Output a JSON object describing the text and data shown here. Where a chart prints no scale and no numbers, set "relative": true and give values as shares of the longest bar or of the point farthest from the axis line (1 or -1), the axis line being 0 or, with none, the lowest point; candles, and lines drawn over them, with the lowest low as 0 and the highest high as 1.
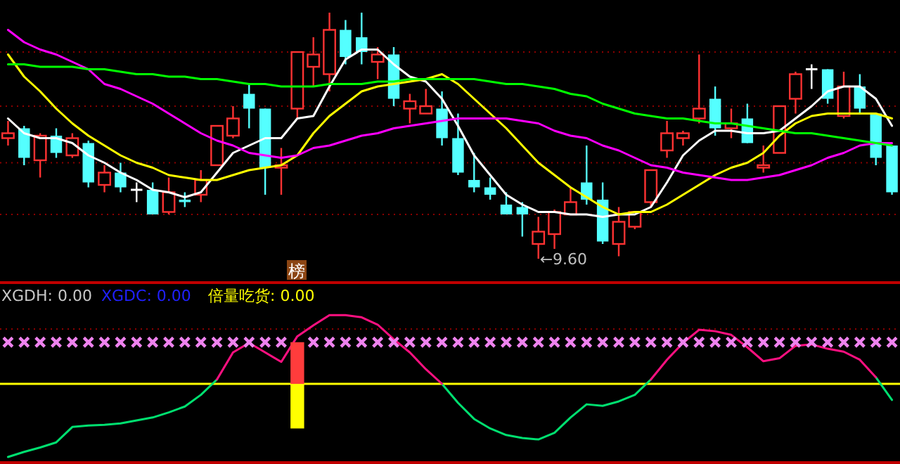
{
  "chart_data": [
    {
      "type": "candlestick",
      "relative": true,
      "categories": [
        null,
        null,
        null,
        null,
        null,
        null,
        null,
        null,
        null,
        null,
        null,
        null,
        null,
        null,
        null,
        null,
        null,
        null,
        null,
        null,
        null,
        null,
        null,
        null,
        null,
        null,
        null,
        null,
        null,
        null,
        null,
        null,
        null,
        null,
        null,
        null,
        null,
        null,
        null,
        null,
        null,
        null,
        null,
        null,
        null,
        null,
        null,
        null,
        null,
        null,
        null,
        null,
        null,
        null,
        null,
        null
      ],
      "ohlc": [
        [
          0.49,
          0.56,
          0.46,
          0.51
        ],
        [
          0.53,
          0.54,
          0.38,
          0.41
        ],
        [
          0.4,
          0.51,
          0.33,
          0.5
        ],
        [
          0.5,
          0.53,
          0.41,
          0.43
        ],
        [
          0.42,
          0.51,
          0.41,
          0.49
        ],
        [
          0.47,
          0.48,
          0.29,
          0.31
        ],
        [
          0.3,
          0.38,
          0.27,
          0.35
        ],
        [
          0.35,
          0.39,
          0.27,
          0.29
        ],
        [
          0.28,
          0.31,
          0.23,
          0.28
        ],
        [
          0.28,
          0.31,
          0.18,
          0.18
        ],
        [
          0.19,
          0.33,
          0.18,
          0.27
        ],
        [
          0.24,
          0.27,
          0.21,
          0.23
        ],
        [
          0.26,
          0.36,
          0.23,
          0.32
        ],
        [
          0.38,
          0.54,
          0.38,
          0.54
        ],
        [
          0.5,
          0.62,
          0.49,
          0.57
        ],
        [
          0.67,
          0.71,
          0.53,
          0.61
        ],
        [
          0.61,
          0.61,
          0.26,
          0.37
        ],
        [
          0.37,
          0.45,
          0.26,
          0.38
        ],
        [
          0.61,
          0.84,
          0.57,
          0.84
        ],
        [
          0.78,
          0.9,
          0.7,
          0.83
        ],
        [
          0.75,
          1.0,
          0.68,
          0.93
        ],
        [
          0.93,
          0.97,
          0.79,
          0.82
        ],
        [
          0.9,
          1.0,
          0.79,
          0.84
        ],
        [
          0.8,
          0.86,
          0.73,
          0.83
        ],
        [
          0.83,
          0.86,
          0.62,
          0.65
        ],
        [
          0.61,
          0.67,
          0.55,
          0.64
        ],
        [
          0.59,
          0.69,
          0.59,
          0.62
        ],
        [
          0.61,
          0.68,
          0.46,
          0.49
        ],
        [
          0.49,
          0.59,
          0.34,
          0.35
        ],
        [
          0.32,
          0.43,
          0.27,
          0.29
        ],
        [
          0.29,
          0.33,
          0.24,
          0.26
        ],
        [
          0.22,
          0.27,
          0.18,
          0.18
        ],
        [
          0.21,
          0.23,
          0.09,
          0.18
        ],
        [
          0.06,
          0.17,
          0.0,
          0.11
        ],
        [
          0.1,
          0.2,
          0.04,
          0.19
        ],
        [
          0.18,
          0.29,
          0.18,
          0.23
        ],
        [
          0.31,
          0.46,
          0.22,
          0.24
        ],
        [
          0.24,
          0.31,
          0.06,
          0.07
        ],
        [
          0.06,
          0.21,
          0.01,
          0.15
        ],
        [
          0.13,
          0.19,
          0.12,
          0.19
        ],
        [
          0.23,
          0.36,
          0.21,
          0.36
        ],
        [
          0.44,
          0.56,
          0.41,
          0.51
        ],
        [
          0.49,
          0.52,
          0.46,
          0.51
        ],
        [
          0.57,
          0.83,
          0.55,
          0.61
        ],
        [
          0.65,
          0.7,
          0.5,
          0.53
        ],
        [
          0.53,
          0.61,
          0.49,
          0.55
        ],
        [
          0.57,
          0.63,
          0.47,
          0.47
        ],
        [
          0.37,
          0.46,
          0.35,
          0.38
        ],
        [
          0.43,
          0.62,
          0.43,
          0.62
        ],
        [
          0.65,
          0.76,
          0.59,
          0.75
        ],
        [
          0.77,
          0.79,
          0.69,
          0.77
        ],
        [
          0.77,
          0.77,
          0.63,
          0.65
        ],
        [
          0.58,
          0.76,
          0.57,
          0.7
        ],
        [
          0.7,
          0.75,
          0.59,
          0.61
        ],
        [
          0.59,
          0.59,
          0.38,
          0.41
        ],
        [
          0.46,
          0.46,
          0.26,
          0.27
        ]
      ],
      "colors": [
        "#ff3232",
        "#54ffff",
        "#ff3232",
        "#54ffff",
        "#ff3232",
        "#54ffff",
        "#ff3232",
        "#54ffff",
        "#ffffff",
        "#54ffff",
        "#ff3232",
        "#54ffff",
        "#ff3232",
        "#ff3232",
        "#ff3232",
        "#54ffff",
        "#54ffff",
        "#ff3232",
        "#ff3232",
        "#ff3232",
        "#ff3232",
        "#54ffff",
        "#54ffff",
        "#ff3232",
        "#54ffff",
        "#ff3232",
        "#ff3232",
        "#54ffff",
        "#54ffff",
        "#54ffff",
        "#54ffff",
        "#54ffff",
        "#54ffff",
        "#ff3232",
        "#ff3232",
        "#ff3232",
        "#54ffff",
        "#54ffff",
        "#ff3232",
        "#ff3232",
        "#ff3232",
        "#ff3232",
        "#ff3232",
        "#ff3232",
        "#54ffff",
        "#ff3232",
        "#54ffff",
        "#ff3232",
        "#ff3232",
        "#ff3232",
        "#ffffff",
        "#54ffff",
        "#ff3232",
        "#54ffff",
        "#54ffff",
        "#54ffff"
      ],
      "series": [
        {
          "type": "line",
          "color": "#ffffff",
          "values": [
            0.57,
            0.51,
            0.49,
            0.49,
            0.47,
            0.42,
            0.39,
            0.35,
            0.32,
            0.28,
            0.27,
            0.25,
            0.27,
            0.35,
            0.43,
            0.46,
            0.49,
            0.49,
            0.57,
            0.58,
            0.7,
            0.81,
            0.85,
            0.85,
            0.79,
            0.74,
            0.72,
            0.65,
            0.54,
            0.42,
            0.34,
            0.26,
            0.22,
            0.19,
            0.19,
            0.18,
            0.18,
            0.17,
            0.18,
            0.18,
            0.21,
            0.31,
            0.42,
            0.48,
            0.52,
            0.52,
            0.51,
            0.51,
            0.52,
            0.57,
            0.62,
            0.68,
            0.7,
            0.7,
            0.65,
            0.54
          ]
        },
        {
          "type": "line",
          "color": "#ffff00",
          "values": [
            0.83,
            0.74,
            0.68,
            0.61,
            0.55,
            0.5,
            0.46,
            0.42,
            0.39,
            0.37,
            0.34,
            0.33,
            0.32,
            0.32,
            0.34,
            0.36,
            0.37,
            0.38,
            0.42,
            0.51,
            0.58,
            0.63,
            0.68,
            0.7,
            0.71,
            0.72,
            0.73,
            0.75,
            0.71,
            0.65,
            0.59,
            0.53,
            0.46,
            0.39,
            0.34,
            0.29,
            0.25,
            0.21,
            0.18,
            0.19,
            0.19,
            0.22,
            0.26,
            0.3,
            0.34,
            0.37,
            0.39,
            0.43,
            0.5,
            0.55,
            0.58,
            0.59,
            0.59,
            0.59,
            0.59,
            0.57
          ]
        },
        {
          "type": "line",
          "color": "#ff00ff",
          "values": [
            0.93,
            0.88,
            0.85,
            0.83,
            0.8,
            0.77,
            0.71,
            0.69,
            0.66,
            0.63,
            0.59,
            0.55,
            0.51,
            0.48,
            0.46,
            0.43,
            0.42,
            0.41,
            0.42,
            0.45,
            0.46,
            0.48,
            0.5,
            0.51,
            0.53,
            0.54,
            0.55,
            0.56,
            0.57,
            0.57,
            0.57,
            0.57,
            0.56,
            0.55,
            0.52,
            0.5,
            0.49,
            0.46,
            0.44,
            0.41,
            0.38,
            0.37,
            0.35,
            0.34,
            0.33,
            0.32,
            0.32,
            0.33,
            0.34,
            0.36,
            0.38,
            0.41,
            0.43,
            0.46,
            0.47,
            0.47
          ]
        },
        {
          "type": "line",
          "color": "#00ff00",
          "values": [
            0.79,
            0.79,
            0.78,
            0.78,
            0.78,
            0.77,
            0.77,
            0.76,
            0.75,
            0.75,
            0.74,
            0.74,
            0.73,
            0.73,
            0.72,
            0.71,
            0.71,
            0.7,
            0.7,
            0.7,
            0.71,
            0.71,
            0.71,
            0.72,
            0.72,
            0.73,
            0.73,
            0.73,
            0.73,
            0.73,
            0.72,
            0.71,
            0.71,
            0.7,
            0.69,
            0.67,
            0.66,
            0.63,
            0.61,
            0.59,
            0.58,
            0.57,
            0.57,
            0.56,
            0.55,
            0.55,
            0.54,
            0.53,
            0.52,
            0.51,
            0.51,
            0.5,
            0.49,
            0.48,
            0.47,
            0.46
          ]
        }
      ],
      "ref_lines": [
        {
          "axis": "y",
          "value": 0.84,
          "color": "#8b0000",
          "line_style": "dotted"
        },
        {
          "axis": "y",
          "value": 0.62,
          "color": "#8b0000",
          "line_style": "dotted"
        },
        {
          "axis": "y",
          "value": 0.39,
          "color": "#8b0000",
          "line_style": "dotted"
        },
        {
          "axis": "y",
          "value": 0.18,
          "color": "#8b0000",
          "line_style": "dotted"
        }
      ],
      "annotations": [
        "榜",
        "←9.60"
      ]
    },
    {
      "type": "line",
      "relative": true,
      "categories": [
        null,
        null,
        null,
        null,
        null,
        null,
        null,
        null,
        null,
        null,
        null,
        null,
        null,
        null,
        null,
        null,
        null,
        null,
        null,
        null,
        null,
        null,
        null,
        null,
        null,
        null,
        null,
        null,
        null,
        null,
        null,
        null,
        null,
        null,
        null,
        null,
        null,
        null,
        null,
        null,
        null,
        null,
        null,
        null,
        null,
        null,
        null,
        null,
        null,
        null,
        null,
        null,
        null,
        null,
        null,
        null
      ],
      "series": [
        {
          "type": "line",
          "color": "#00e070",
          "values": [
            -1,
            -0.93,
            -0.87,
            -0.8,
            -0.59,
            -0.57,
            -0.56,
            -0.54,
            -0.5,
            -0.46,
            -0.39,
            -0.31,
            -0.15,
            0.06,
            null,
            null,
            null,
            null,
            null,
            null,
            null,
            null,
            null,
            null,
            null,
            null,
            null,
            0,
            -0.26,
            -0.48,
            -0.61,
            -0.7,
            -0.74,
            -0.76,
            -0.67,
            -0.46,
            -0.28,
            -0.3,
            -0.24,
            -0.15,
            0.06,
            null,
            null,
            null,
            null,
            null,
            null,
            null,
            null,
            null,
            null,
            null,
            null,
            null,
            0.09,
            -0.22
          ]
        },
        {
          "type": "line",
          "color": "#ff1080",
          "values": [
            null,
            null,
            null,
            null,
            null,
            null,
            null,
            null,
            null,
            null,
            null,
            null,
            null,
            0.06,
            0.43,
            0.56,
            0.43,
            0.3,
            0.65,
            0.8,
            0.94,
            0.94,
            0.91,
            0.81,
            0.61,
            0.43,
            0.2,
            0,
            null,
            null,
            null,
            null,
            null,
            null,
            null,
            null,
            null,
            null,
            null,
            null,
            0.06,
            0.33,
            0.56,
            0.74,
            0.72,
            0.67,
            0.5,
            0.31,
            0.35,
            0.52,
            0.54,
            0.48,
            0.44,
            0.33,
            0.09,
            null
          ]
        },
        {
          "type": "scatter",
          "color": "#ee82ee",
          "marker": "cross",
          "values": [
            0.57,
            0.57,
            0.57,
            0.57,
            0.57,
            0.57,
            0.57,
            0.57,
            0.57,
            0.57,
            0.57,
            0.57,
            0.57,
            0.57,
            0.57,
            0.57,
            0.57,
            0.57,
            null,
            0.57,
            0.57,
            0.57,
            0.57,
            0.57,
            0.57,
            0.57,
            0.57,
            0.57,
            0.57,
            0.57,
            0.57,
            0.57,
            0.57,
            0.57,
            0.57,
            0.57,
            0.57,
            0.57,
            0.57,
            0.57,
            0.57,
            0.57,
            0.57,
            0.57,
            0.57,
            0.57,
            0.57,
            0.57,
            0.57,
            0.57,
            0.57,
            0.57,
            0.57,
            0.57,
            0.57,
            0.57
          ]
        },
        {
          "type": "bar",
          "color": "#ff3c3c",
          "values": [
            null,
            null,
            null,
            null,
            null,
            null,
            null,
            null,
            null,
            null,
            null,
            null,
            null,
            null,
            null,
            null,
            null,
            null,
            0.57,
            null,
            null,
            null,
            null,
            null,
            null,
            null,
            null,
            null,
            null,
            null,
            null,
            null,
            null,
            null,
            null,
            null,
            null,
            null,
            null,
            null,
            null,
            null,
            null,
            null,
            null,
            null,
            null,
            null,
            null,
            null,
            null,
            null,
            null,
            null,
            null,
            null
          ]
        },
        {
          "type": "bar",
          "color": "#ffff00",
          "values": [
            null,
            null,
            null,
            null,
            null,
            null,
            null,
            null,
            null,
            null,
            null,
            null,
            null,
            null,
            null,
            null,
            null,
            null,
            -0.61,
            null,
            null,
            null,
            null,
            null,
            null,
            null,
            null,
            null,
            null,
            null,
            null,
            null,
            null,
            null,
            null,
            null,
            null,
            null,
            null,
            null,
            null,
            null,
            null,
            null,
            null,
            null,
            null,
            null,
            null,
            null,
            null,
            null,
            null,
            null,
            null,
            null
          ]
        }
      ],
      "ref_lines": [
        {
          "axis": "y",
          "value": 0,
          "color": "#ffff00",
          "line_style": "solid"
        },
        {
          "axis": "y",
          "value": 0.75,
          "color": "#8b0000",
          "line_style": "dotted"
        }
      ],
      "annotations": [
        "XGDH: 0.00",
        "XGDC: 0.00",
        "倍量吃货: 0.00"
      ]
    }
  ]
}
